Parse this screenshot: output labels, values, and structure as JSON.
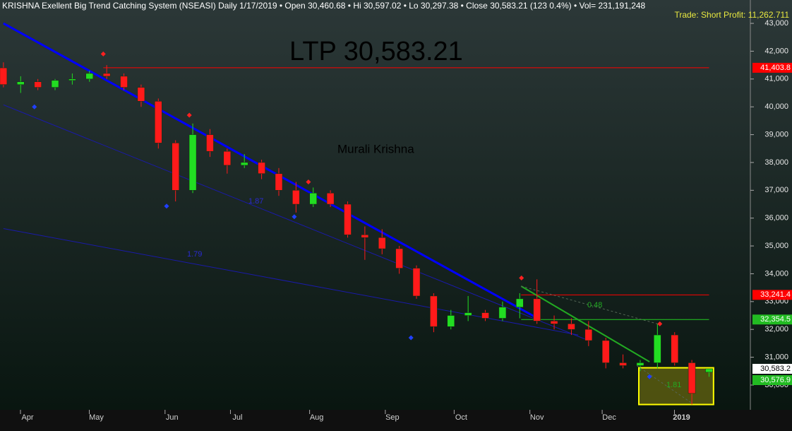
{
  "chart_data": {
    "type": "candlestick",
    "title": "KRISHNA Exellent Big Trend Catching System (NSEASI) Daily  1/17/2019  •  Open 30,460.68  •  Hi 30,597.02  •  Lo 30,297.38  •  Close 30,583.21 (123 0.4%)  •  Vol= 231,191,248",
    "annotations": {
      "ltp": "LTP 30,583.21",
      "author": "Murali Krishna",
      "trade": "Trade: Short Profit: 11,262.711"
    },
    "x": [
      0,
      5,
      10,
      15,
      20,
      25,
      30,
      35,
      40,
      45,
      50,
      55,
      60,
      65,
      70,
      75,
      80,
      85,
      90,
      95,
      100,
      105,
      110,
      115,
      120,
      125,
      130,
      135,
      140,
      145,
      150,
      155,
      160,
      165,
      170,
      175,
      180,
      185,
      190,
      195,
      200,
      205
    ],
    "open": [
      41400,
      40800,
      40900,
      40700,
      40950,
      41000,
      41200,
      41100,
      40700,
      40200,
      38700,
      37000,
      39000,
      38400,
      37900,
      38000,
      37600,
      37000,
      36500,
      36900,
      36500,
      35400,
      35300,
      34900,
      34200,
      33200,
      32100,
      32500,
      32600,
      32400,
      32800,
      33100,
      32300,
      32200,
      32000,
      31600,
      30800,
      30700,
      30800,
      31800,
      30800,
      30460.68
    ],
    "high": [
      41600,
      41100,
      41000,
      41000,
      41200,
      41300,
      41500,
      41200,
      40800,
      40300,
      38800,
      39400,
      39200,
      38500,
      38300,
      38100,
      37800,
      37300,
      37100,
      37000,
      36600,
      35700,
      35600,
      35000,
      34300,
      33300,
      32700,
      33200,
      32700,
      33000,
      33300,
      33800,
      32500,
      32400,
      32300,
      31700,
      31100,
      30900,
      32200,
      31900,
      30900,
      30597.02
    ],
    "low": [
      40700,
      40500,
      40600,
      40600,
      40800,
      40900,
      41000,
      40600,
      40000,
      38500,
      36600,
      36900,
      38200,
      37600,
      37800,
      37400,
      36800,
      36200,
      36400,
      36400,
      35300,
      34500,
      34700,
      34000,
      33100,
      31900,
      32000,
      32300,
      32300,
      32300,
      32400,
      32200,
      32000,
      31800,
      31400,
      30600,
      30600,
      30500,
      30600,
      30700,
      29300,
      30297.38
    ],
    "close": [
      40800,
      40900,
      40700,
      40950,
      41000,
      41200,
      41100,
      40700,
      40200,
      38700,
      37000,
      39000,
      38400,
      37900,
      38000,
      37600,
      37000,
      36500,
      36900,
      36500,
      35400,
      35300,
      34900,
      34200,
      33200,
      32100,
      32500,
      32600,
      32400,
      32800,
      33100,
      32300,
      32200,
      32000,
      31600,
      30800,
      30700,
      30800,
      31800,
      30800,
      29700,
      30583.21
    ],
    "up_color": "#22dd22",
    "down_color": "#ff1a1a",
    "xlim": [
      -1,
      217
    ],
    "ylim": [
      29110,
      43840
    ],
    "xticks": [
      {
        "value": 7,
        "label": "Apr"
      },
      {
        "value": 27,
        "label": "May"
      },
      {
        "value": 49,
        "label": "Jun"
      },
      {
        "value": 68,
        "label": "Jul"
      },
      {
        "value": 91,
        "label": "Aug"
      },
      {
        "value": 113,
        "label": "Sep"
      },
      {
        "value": 133,
        "label": "Oct"
      },
      {
        "value": 155,
        "label": "Nov"
      },
      {
        "value": 176,
        "label": "Dec"
      },
      {
        "value": 197,
        "label": "2019"
      }
    ],
    "yticks": [
      {
        "value": 30000,
        "label": "30,000"
      },
      {
        "value": 31000,
        "label": "31,000"
      },
      {
        "value": 32000,
        "label": "32,000"
      },
      {
        "value": 33000,
        "label": "33,000"
      },
      {
        "value": 34000,
        "label": "34,000"
      },
      {
        "value": 35000,
        "label": "35,000"
      },
      {
        "value": 36000,
        "label": "36,000"
      },
      {
        "value": 37000,
        "label": "37,000"
      },
      {
        "value": 38000,
        "label": "38,000"
      },
      {
        "value": 39000,
        "label": "39,000"
      },
      {
        "value": 40000,
        "label": "40,000"
      },
      {
        "value": 41000,
        "label": "41,000"
      },
      {
        "value": 42000,
        "label": "42,000"
      },
      {
        "value": 43000,
        "label": "43,000"
      }
    ],
    "lines": [
      {
        "x": [
          0,
          155
        ],
        "y": [
          43000,
          32412
        ],
        "color": "#0000ff",
        "width": 3,
        "dash": false
      },
      {
        "x": [
          0,
          169
        ],
        "y": [
          40072,
          31650
        ],
        "color": "#1a1aa8",
        "width": 1,
        "dash": false,
        "label": "1.87"
      },
      {
        "x": [
          0,
          167
        ],
        "y": [
          35624,
          31800
        ],
        "color": "#1a1aa8",
        "width": 1,
        "dash": false,
        "label": "1.79"
      },
      {
        "x": [
          150.4,
          187.7
        ],
        "y": [
          33555,
          30836
        ],
        "color": "#22aa22",
        "width": 2,
        "dash": false
      },
      {
        "x": [
          150.4,
          190
        ],
        "y": [
          33555,
          32200
        ],
        "color": "#556655",
        "width": 1,
        "dash": true,
        "label": "0.48"
      },
      {
        "x": [
          184,
          200
        ],
        "y": [
          30700,
          29350
        ],
        "color": "#556655",
        "width": 1,
        "dash": true,
        "label": "1.81"
      }
    ],
    "hlines": [
      {
        "value": 41403.8,
        "x": [
          29,
          205
        ],
        "color": "#ff0000"
      },
      {
        "value": 33241.4,
        "x": [
          150.4,
          205
        ],
        "color": "#ff0000"
      },
      {
        "value": 32354.5,
        "x": [
          150.4,
          205
        ],
        "color": "#22cc22"
      }
    ],
    "price_labels": [
      {
        "value": 41403.8,
        "label": "41,403.8",
        "color": "#ff0000"
      },
      {
        "value": 33241.4,
        "label": "33,241.4",
        "color": "#ff0000"
      },
      {
        "value": 32354.5,
        "label": "32,354.5",
        "color": "#22bb22"
      },
      {
        "value": 30583.2,
        "label": "30,583.2",
        "color": "#ffffff"
      },
      {
        "value": 30576.9,
        "label": "30,576.9",
        "color": "#22bb22"
      }
    ],
    "sell_signals": {
      "x": [
        29,
        54,
        88.6,
        150.5,
        190.7
      ],
      "y": [
        41900,
        39700,
        37300,
        33850,
        32200
      ],
      "color": "#ff2020"
    },
    "buy_signals": {
      "x": [
        9,
        47.4,
        84.5,
        118.4,
        187.7
      ],
      "y": [
        40000,
        36430,
        36050,
        31700,
        30300
      ],
      "color": "#2040ff"
    },
    "highlight": {
      "x": [
        184.6,
        206.3
      ],
      "y": [
        29300,
        30620
      ],
      "color": "#ffff00"
    }
  }
}
